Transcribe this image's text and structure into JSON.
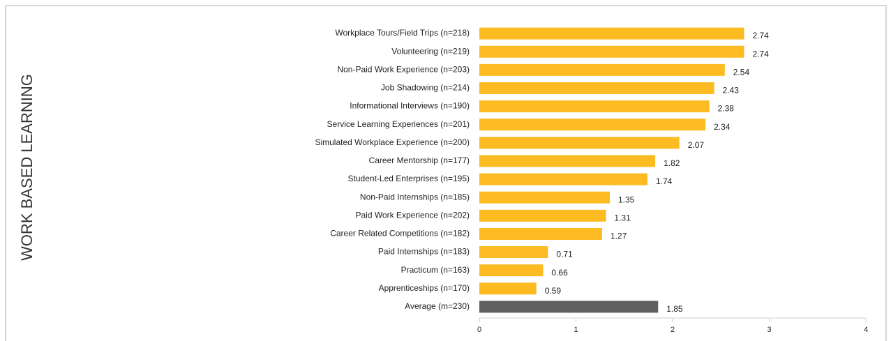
{
  "chart_data": {
    "type": "barh",
    "ylabel": "WORK BASED LEARNING",
    "categories": [
      "Workplace Tours/Field Trips (n=218)",
      "Volunteering (n=219)",
      "Non-Paid Work Experience (n=203)",
      "Job Shadowing (n=214)",
      "Informational Interviews (n=190)",
      "Service Learning Experiences (n=201)",
      "Simulated Workplace Experience (n=200)",
      "Career Mentorship (n=177)",
      "Student-Led Enterprises (n=195)",
      "Non-Paid Internships (n=185)",
      "Paid Work Experience (n=202)",
      "Career Related Competitions (n=182)",
      "Paid Internships (n=183)",
      "Practicum (n=163)",
      "Apprenticeships (n=170)",
      "Average (m=230)"
    ],
    "values": [
      2.74,
      2.74,
      2.54,
      2.43,
      2.38,
      2.34,
      2.07,
      1.82,
      1.74,
      1.35,
      1.31,
      1.27,
      0.71,
      0.66,
      0.59,
      1.85
    ],
    "colors": [
      "#fbbb21",
      "#fbbb21",
      "#fbbb21",
      "#fbbb21",
      "#fbbb21",
      "#fbbb21",
      "#fbbb21",
      "#fbbb21",
      "#fbbb21",
      "#fbbb21",
      "#fbbb21",
      "#fbbb21",
      "#fbbb21",
      "#fbbb21",
      "#fbbb21",
      "#5f5f5f"
    ],
    "xlim": [
      0,
      4
    ],
    "xticks": [
      0,
      1,
      2,
      3,
      4
    ],
    "grid": false
  }
}
